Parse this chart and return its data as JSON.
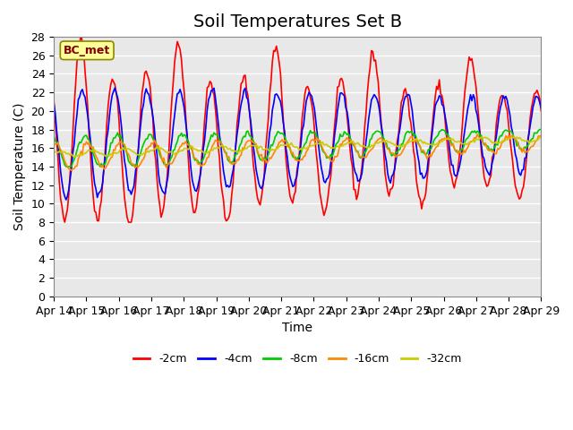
{
  "title": "Soil Temperatures Set B",
  "xlabel": "Time",
  "ylabel": "Soil Temperature (C)",
  "annotation": "BC_met",
  "ylim": [
    0,
    28
  ],
  "yticks": [
    0,
    2,
    4,
    6,
    8,
    10,
    12,
    14,
    16,
    18,
    20,
    22,
    24,
    26,
    28
  ],
  "xtick_labels": [
    "Apr 14",
    "Apr 15",
    "Apr 16",
    "Apr 17",
    "Apr 18",
    "Apr 19",
    "Apr 20",
    "Apr 21",
    "Apr 22",
    "Apr 23",
    "Apr 24",
    "Apr 25",
    "Apr 26",
    "Apr 27",
    "Apr 28",
    "Apr 29"
  ],
  "series_colors": [
    "#ff0000",
    "#0000ff",
    "#00cc00",
    "#ff8800",
    "#cccc00"
  ],
  "series_labels": [
    "-2cm",
    "-4cm",
    "-8cm",
    "-16cm",
    "-32cm"
  ],
  "background_color": "#e8e8e8",
  "grid_color": "#ffffff",
  "n_points_per_day": 24,
  "n_days": 15,
  "title_fontsize": 14,
  "axis_label_fontsize": 10,
  "tick_fontsize": 9
}
